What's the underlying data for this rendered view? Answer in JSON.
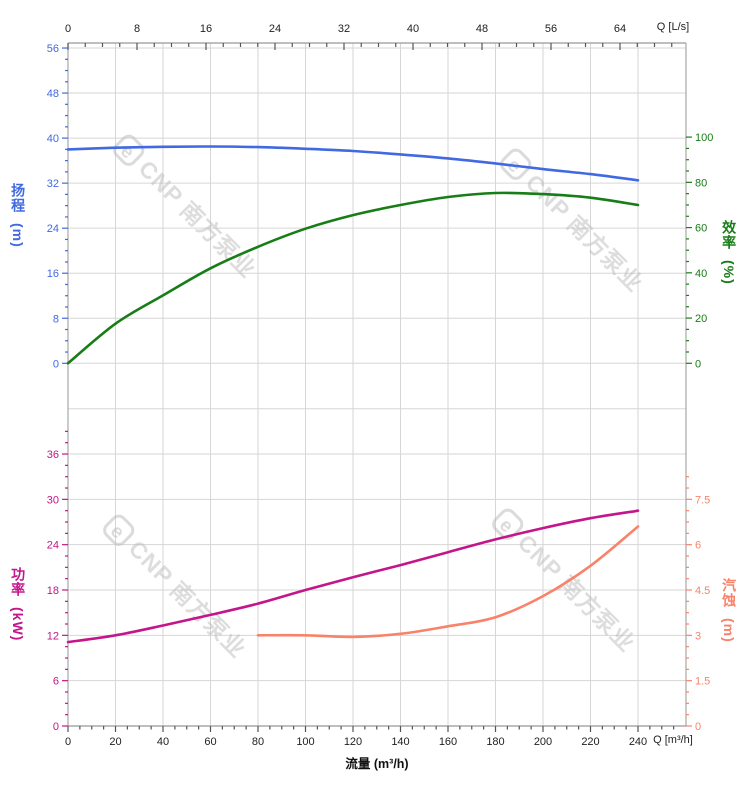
{
  "watermark": {
    "logo": "e",
    "text": "CNP 南方泵业"
  },
  "chart_data": [
    {
      "type": "line",
      "name": "head-efficiency-plot",
      "top_axis": {
        "end_label": "Q [L/s]",
        "unit": "L/s",
        "ticks": [
          0,
          8,
          16,
          24,
          32,
          40,
          48,
          56,
          64
        ],
        "minor_step": 2,
        "max": 71.6
      },
      "left_axis": {
        "label": "扬程",
        "unit": "(m)",
        "color": "#4169e1",
        "min": 0,
        "max": 56,
        "ticks": [
          0,
          8,
          16,
          24,
          32,
          40,
          48,
          56
        ],
        "minor_step": 2
      },
      "right_axis": {
        "label": "效率",
        "unit": "(%)",
        "color": "#177d17",
        "min": 0,
        "max": 100,
        "ticks": [
          0,
          20,
          40,
          60,
          80,
          100
        ],
        "minor_step": 5
      },
      "series": [
        {
          "key": "head",
          "name": "扬程",
          "axis": "left",
          "color": "#4169e1",
          "x": [
            0,
            20,
            40,
            60,
            80,
            100,
            120,
            140,
            160,
            180,
            200,
            220,
            240
          ],
          "values": [
            38.0,
            38.3,
            38.45,
            38.5,
            38.4,
            38.1,
            37.7,
            37.1,
            36.4,
            35.5,
            34.5,
            33.6,
            32.5
          ]
        },
        {
          "key": "efficiency",
          "name": "效率",
          "axis": "right",
          "color": "#177d17",
          "x": [
            0,
            20,
            40,
            60,
            80,
            100,
            120,
            140,
            160,
            180,
            200,
            220,
            240
          ],
          "values": [
            0,
            17.5,
            30,
            42,
            51.5,
            59.5,
            65.5,
            70,
            73.5,
            75.3,
            74.8,
            73.2,
            70
          ]
        }
      ]
    },
    {
      "type": "line",
      "name": "power-npsh-plot",
      "bottom_axis": {
        "title": "流量 (m³/h)",
        "end_label": "Q [m³/h]",
        "unit": "m³/h",
        "ticks": [
          0,
          20,
          40,
          60,
          80,
          100,
          120,
          140,
          160,
          180,
          200,
          220,
          240
        ],
        "minor_step": 5,
        "max": 260
      },
      "left_axis": {
        "label": "功率",
        "unit": "(kW)",
        "color": "#c4158a",
        "min": 0,
        "max": 36,
        "ticks": [
          0,
          6,
          12,
          18,
          24,
          30,
          36
        ],
        "minor_step": 1.5
      },
      "right_axis": {
        "label": "汽蚀",
        "unit": "(m)",
        "color": "#f8836a",
        "min": 0,
        "max": 7.5,
        "ticks": [
          0,
          1.5,
          3,
          4.5,
          6,
          7.5
        ],
        "minor_step": 0.375
      },
      "series": [
        {
          "key": "power",
          "name": "功率",
          "axis": "left",
          "color": "#c4158a",
          "x": [
            0,
            20,
            40,
            60,
            80,
            100,
            120,
            140,
            160,
            180,
            200,
            220,
            240
          ],
          "values": [
            11.1,
            12.0,
            13.3,
            14.7,
            16.2,
            18.0,
            19.7,
            21.3,
            23.0,
            24.7,
            26.2,
            27.5,
            28.5
          ]
        },
        {
          "key": "npsh",
          "name": "汽蚀",
          "axis": "right",
          "color": "#f8836a",
          "x": [
            80,
            100,
            120,
            140,
            160,
            180,
            200,
            220,
            240
          ],
          "values": [
            3.0,
            3.0,
            2.95,
            3.05,
            3.3,
            3.6,
            4.3,
            5.3,
            6.6
          ]
        }
      ]
    }
  ]
}
